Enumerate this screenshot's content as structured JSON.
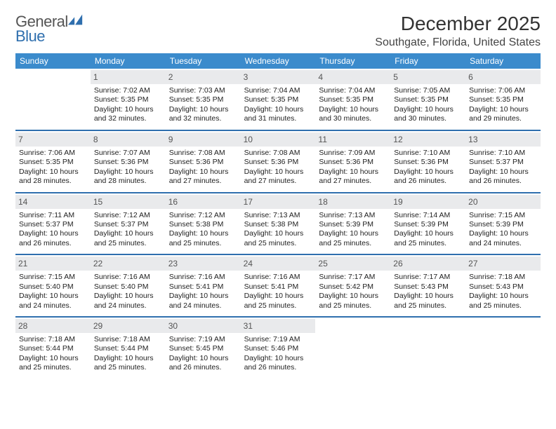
{
  "logo": {
    "general": "General",
    "blue": "Blue",
    "mark_color": "#2f6fae"
  },
  "header": {
    "month_title": "December 2025",
    "location": "Southgate, Florida, United States"
  },
  "styling": {
    "header_bg": "#3b8bcc",
    "header_text": "#ffffff",
    "week_border": "#2f6fae",
    "daynum_bg": "#e9eaec",
    "daynum_text": "#555555",
    "body_text": "#222222",
    "body_fontsize": 10.5,
    "dow_fontsize": 12,
    "title_fontsize": 28,
    "location_fontsize": 16
  },
  "days_of_week": [
    "Sunday",
    "Monday",
    "Tuesday",
    "Wednesday",
    "Thursday",
    "Friday",
    "Saturday"
  ],
  "weeks": [
    [
      {
        "day": null
      },
      {
        "day": 1,
        "sunrise": "Sunrise: 7:02 AM",
        "sunset": "Sunset: 5:35 PM",
        "daylight1": "Daylight: 10 hours",
        "daylight2": "and 32 minutes."
      },
      {
        "day": 2,
        "sunrise": "Sunrise: 7:03 AM",
        "sunset": "Sunset: 5:35 PM",
        "daylight1": "Daylight: 10 hours",
        "daylight2": "and 32 minutes."
      },
      {
        "day": 3,
        "sunrise": "Sunrise: 7:04 AM",
        "sunset": "Sunset: 5:35 PM",
        "daylight1": "Daylight: 10 hours",
        "daylight2": "and 31 minutes."
      },
      {
        "day": 4,
        "sunrise": "Sunrise: 7:04 AM",
        "sunset": "Sunset: 5:35 PM",
        "daylight1": "Daylight: 10 hours",
        "daylight2": "and 30 minutes."
      },
      {
        "day": 5,
        "sunrise": "Sunrise: 7:05 AM",
        "sunset": "Sunset: 5:35 PM",
        "daylight1": "Daylight: 10 hours",
        "daylight2": "and 30 minutes."
      },
      {
        "day": 6,
        "sunrise": "Sunrise: 7:06 AM",
        "sunset": "Sunset: 5:35 PM",
        "daylight1": "Daylight: 10 hours",
        "daylight2": "and 29 minutes."
      }
    ],
    [
      {
        "day": 7,
        "sunrise": "Sunrise: 7:06 AM",
        "sunset": "Sunset: 5:35 PM",
        "daylight1": "Daylight: 10 hours",
        "daylight2": "and 28 minutes."
      },
      {
        "day": 8,
        "sunrise": "Sunrise: 7:07 AM",
        "sunset": "Sunset: 5:36 PM",
        "daylight1": "Daylight: 10 hours",
        "daylight2": "and 28 minutes."
      },
      {
        "day": 9,
        "sunrise": "Sunrise: 7:08 AM",
        "sunset": "Sunset: 5:36 PM",
        "daylight1": "Daylight: 10 hours",
        "daylight2": "and 27 minutes."
      },
      {
        "day": 10,
        "sunrise": "Sunrise: 7:08 AM",
        "sunset": "Sunset: 5:36 PM",
        "daylight1": "Daylight: 10 hours",
        "daylight2": "and 27 minutes."
      },
      {
        "day": 11,
        "sunrise": "Sunrise: 7:09 AM",
        "sunset": "Sunset: 5:36 PM",
        "daylight1": "Daylight: 10 hours",
        "daylight2": "and 27 minutes."
      },
      {
        "day": 12,
        "sunrise": "Sunrise: 7:10 AM",
        "sunset": "Sunset: 5:36 PM",
        "daylight1": "Daylight: 10 hours",
        "daylight2": "and 26 minutes."
      },
      {
        "day": 13,
        "sunrise": "Sunrise: 7:10 AM",
        "sunset": "Sunset: 5:37 PM",
        "daylight1": "Daylight: 10 hours",
        "daylight2": "and 26 minutes."
      }
    ],
    [
      {
        "day": 14,
        "sunrise": "Sunrise: 7:11 AM",
        "sunset": "Sunset: 5:37 PM",
        "daylight1": "Daylight: 10 hours",
        "daylight2": "and 26 minutes."
      },
      {
        "day": 15,
        "sunrise": "Sunrise: 7:12 AM",
        "sunset": "Sunset: 5:37 PM",
        "daylight1": "Daylight: 10 hours",
        "daylight2": "and 25 minutes."
      },
      {
        "day": 16,
        "sunrise": "Sunrise: 7:12 AM",
        "sunset": "Sunset: 5:38 PM",
        "daylight1": "Daylight: 10 hours",
        "daylight2": "and 25 minutes."
      },
      {
        "day": 17,
        "sunrise": "Sunrise: 7:13 AM",
        "sunset": "Sunset: 5:38 PM",
        "daylight1": "Daylight: 10 hours",
        "daylight2": "and 25 minutes."
      },
      {
        "day": 18,
        "sunrise": "Sunrise: 7:13 AM",
        "sunset": "Sunset: 5:39 PM",
        "daylight1": "Daylight: 10 hours",
        "daylight2": "and 25 minutes."
      },
      {
        "day": 19,
        "sunrise": "Sunrise: 7:14 AM",
        "sunset": "Sunset: 5:39 PM",
        "daylight1": "Daylight: 10 hours",
        "daylight2": "and 25 minutes."
      },
      {
        "day": 20,
        "sunrise": "Sunrise: 7:15 AM",
        "sunset": "Sunset: 5:39 PM",
        "daylight1": "Daylight: 10 hours",
        "daylight2": "and 24 minutes."
      }
    ],
    [
      {
        "day": 21,
        "sunrise": "Sunrise: 7:15 AM",
        "sunset": "Sunset: 5:40 PM",
        "daylight1": "Daylight: 10 hours",
        "daylight2": "and 24 minutes."
      },
      {
        "day": 22,
        "sunrise": "Sunrise: 7:16 AM",
        "sunset": "Sunset: 5:40 PM",
        "daylight1": "Daylight: 10 hours",
        "daylight2": "and 24 minutes."
      },
      {
        "day": 23,
        "sunrise": "Sunrise: 7:16 AM",
        "sunset": "Sunset: 5:41 PM",
        "daylight1": "Daylight: 10 hours",
        "daylight2": "and 24 minutes."
      },
      {
        "day": 24,
        "sunrise": "Sunrise: 7:16 AM",
        "sunset": "Sunset: 5:41 PM",
        "daylight1": "Daylight: 10 hours",
        "daylight2": "and 25 minutes."
      },
      {
        "day": 25,
        "sunrise": "Sunrise: 7:17 AM",
        "sunset": "Sunset: 5:42 PM",
        "daylight1": "Daylight: 10 hours",
        "daylight2": "and 25 minutes."
      },
      {
        "day": 26,
        "sunrise": "Sunrise: 7:17 AM",
        "sunset": "Sunset: 5:43 PM",
        "daylight1": "Daylight: 10 hours",
        "daylight2": "and 25 minutes."
      },
      {
        "day": 27,
        "sunrise": "Sunrise: 7:18 AM",
        "sunset": "Sunset: 5:43 PM",
        "daylight1": "Daylight: 10 hours",
        "daylight2": "and 25 minutes."
      }
    ],
    [
      {
        "day": 28,
        "sunrise": "Sunrise: 7:18 AM",
        "sunset": "Sunset: 5:44 PM",
        "daylight1": "Daylight: 10 hours",
        "daylight2": "and 25 minutes."
      },
      {
        "day": 29,
        "sunrise": "Sunrise: 7:18 AM",
        "sunset": "Sunset: 5:44 PM",
        "daylight1": "Daylight: 10 hours",
        "daylight2": "and 25 minutes."
      },
      {
        "day": 30,
        "sunrise": "Sunrise: 7:19 AM",
        "sunset": "Sunset: 5:45 PM",
        "daylight1": "Daylight: 10 hours",
        "daylight2": "and 26 minutes."
      },
      {
        "day": 31,
        "sunrise": "Sunrise: 7:19 AM",
        "sunset": "Sunset: 5:46 PM",
        "daylight1": "Daylight: 10 hours",
        "daylight2": "and 26 minutes."
      },
      {
        "day": null
      },
      {
        "day": null
      },
      {
        "day": null
      }
    ]
  ]
}
